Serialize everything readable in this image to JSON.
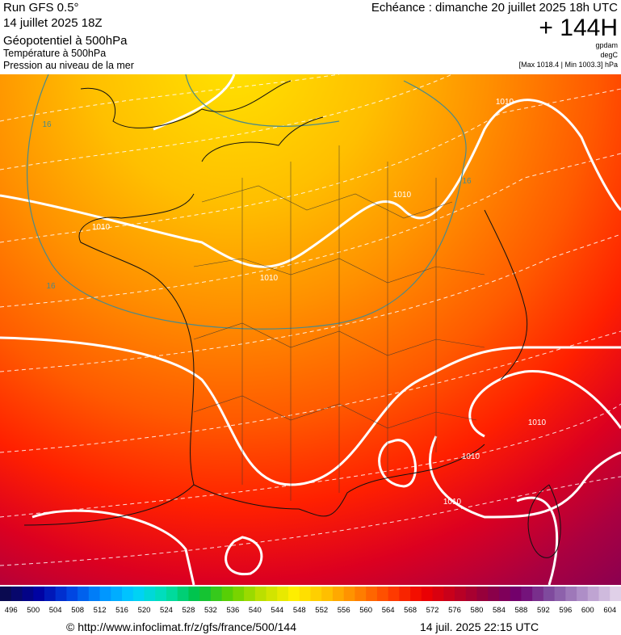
{
  "header": {
    "run": "Run GFS 0.5°",
    "date": "14 juillet 2025 18Z",
    "field1": "Géopotentiel à 500hPa",
    "field2": "Température à 500hPa",
    "field3": "Pression au niveau de la mer",
    "forecast": "Echéance : dimanche 20 juillet 2025 18h UTC",
    "lead": "+ 144H",
    "unit1": "gpdam",
    "unit2": "degC",
    "range": "[Max 1018.4 | Min 1003.3] hPa"
  },
  "map": {
    "contour_labels": [
      "1010",
      "1010",
      "1010",
      "1010",
      "1010",
      "1010",
      "1010",
      "16",
      "16",
      "16"
    ]
  },
  "legend": {
    "labels": [
      496,
      500,
      504,
      508,
      512,
      516,
      520,
      524,
      528,
      532,
      536,
      540,
      544,
      548,
      552,
      556,
      560,
      564,
      568,
      572,
      576,
      580,
      584,
      588,
      592,
      596,
      600,
      604
    ]
  },
  "footer": {
    "url": "© http://www.infoclimat.fr/z/gfs/france/500/144",
    "timestamp": "14 juil. 2025 22:15 UTC"
  }
}
